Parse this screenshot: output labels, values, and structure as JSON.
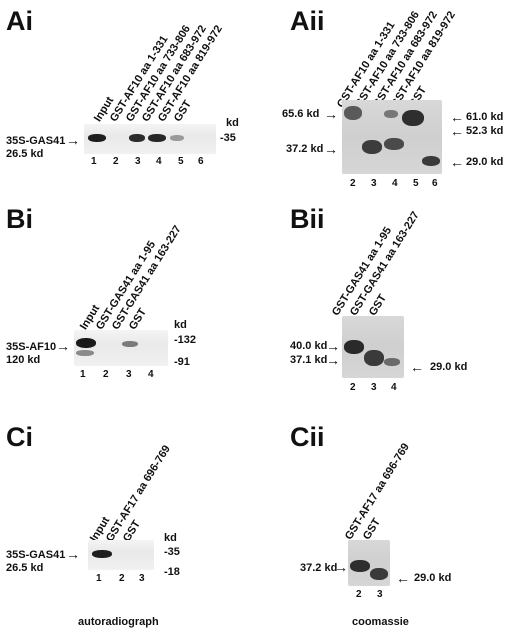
{
  "panels": {
    "Ai": {
      "label": "Ai",
      "lanes": [
        "Input",
        "GST-AF10 aa 1-331",
        "GST-AF10 aa 733-806",
        "GST-AF10 aa 683-972",
        "GST-AF10 aa 819-972",
        "GST"
      ],
      "lane_numbers": [
        "1",
        "2",
        "3",
        "4",
        "5",
        "6"
      ],
      "left_label": "35S-GAS41",
      "left_sub": "26.5 kd",
      "kd_label": "kd",
      "marker": "-35"
    },
    "Aii": {
      "label": "Aii",
      "lanes": [
        "GST-AF10 aa 1-331",
        "GST-AF10 aa 733-806",
        "GST-AF10 aa 683-972",
        "GST-AF10 aa 819-972",
        "GST"
      ],
      "lane_numbers": [
        "2",
        "3",
        "4",
        "5",
        "6"
      ],
      "left_markers": [
        "65.6 kd",
        "37.2 kd"
      ],
      "right_markers": [
        "61.0 kd",
        "52.3 kd",
        "29.0 kd"
      ]
    },
    "Bi": {
      "label": "Bi",
      "lanes": [
        "Input",
        "GST-GAS41 aa 1-95",
        "GST-GAS41 aa 163-227",
        "GST"
      ],
      "lane_numbers": [
        "1",
        "2",
        "3",
        "4"
      ],
      "left_label": "35S-AF10",
      "left_sub": "120 kd",
      "kd_label": "kd",
      "markers": [
        "-132",
        "-91"
      ]
    },
    "Bii": {
      "label": "Bii",
      "lanes": [
        "GST-GAS41 aa 1-95",
        "GST-GAS41 aa 163-227",
        "GST"
      ],
      "lane_numbers": [
        "2",
        "3",
        "4"
      ],
      "left_markers": [
        "40.0 kd",
        "37.1 kd"
      ],
      "right_markers": [
        "29.0 kd"
      ]
    },
    "Ci": {
      "label": "Ci",
      "lanes": [
        "Input",
        "GST-AF17 aa 696-769",
        "GST"
      ],
      "lane_numbers": [
        "1",
        "2",
        "3"
      ],
      "left_label": "35S-GAS41",
      "left_sub": "26.5 kd",
      "kd_label": "kd",
      "markers": [
        "-35",
        "-18"
      ]
    },
    "Cii": {
      "label": "Cii",
      "lanes": [
        "GST-AF17 aa 696-769",
        "GST"
      ],
      "lane_numbers": [
        "2",
        "3"
      ],
      "left_markers": [
        "37.2 kd"
      ],
      "right_markers": [
        "29.0 kd"
      ]
    }
  },
  "footer": {
    "left": "autoradiograph",
    "right": "coomassie"
  }
}
